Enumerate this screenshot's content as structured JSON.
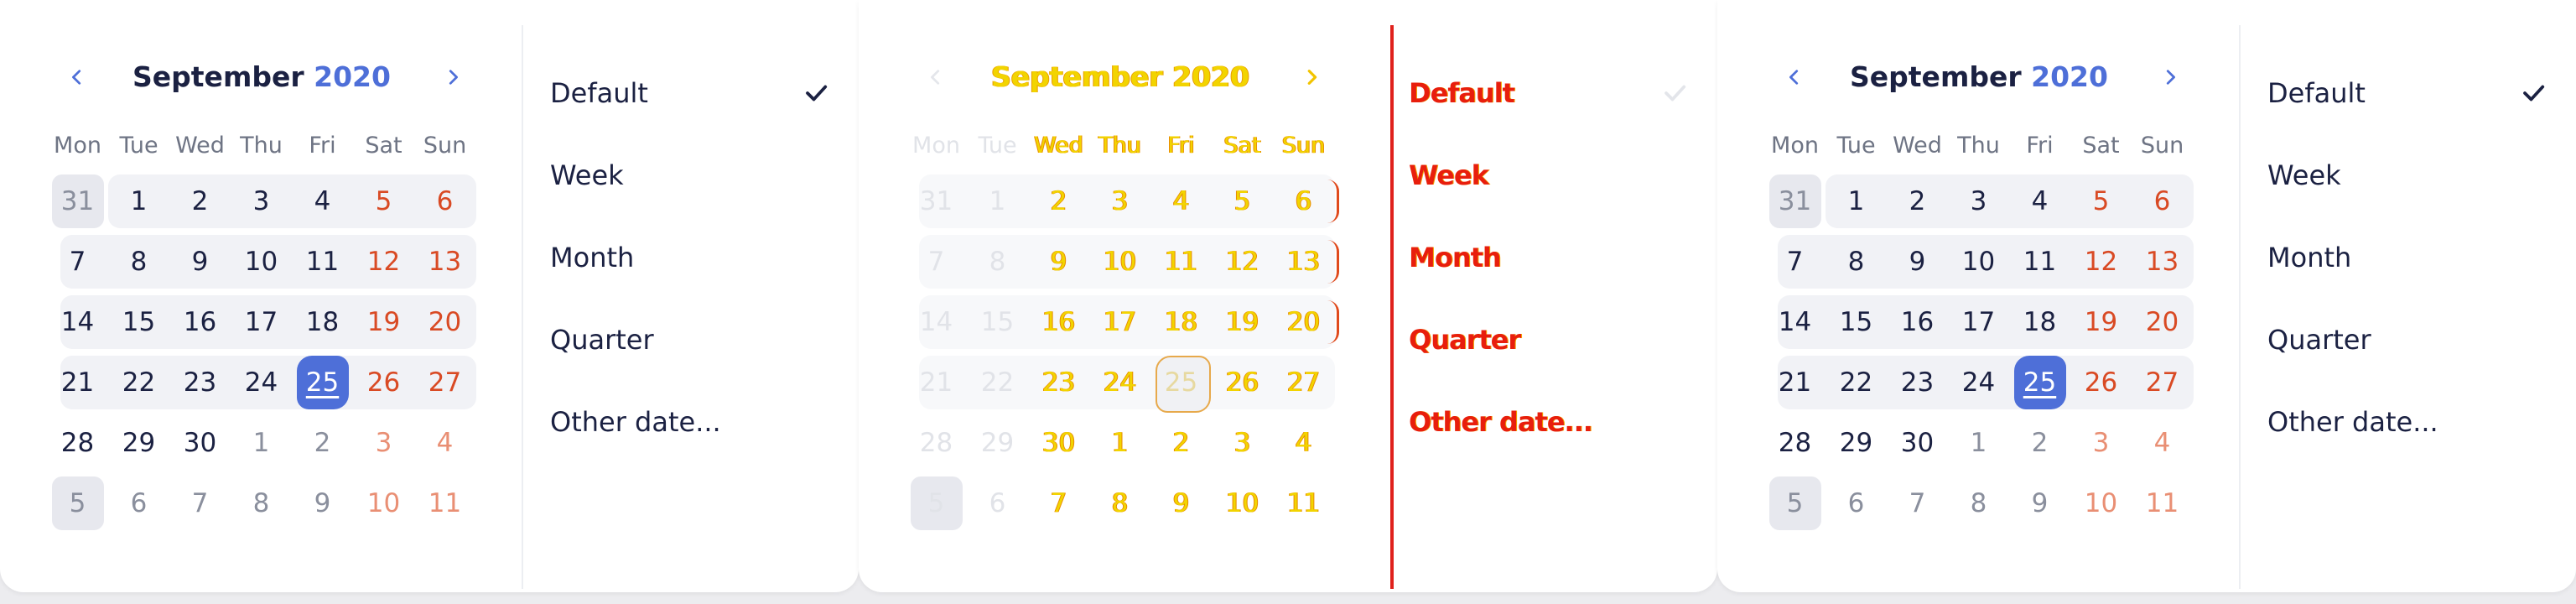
{
  "calendar": {
    "month": "September",
    "year": "2020",
    "weekdays": [
      "Mon",
      "Tue",
      "Wed",
      "Thu",
      "Fri",
      "Sat",
      "Sun"
    ],
    "weeks": [
      [
        "31",
        "1",
        "2",
        "3",
        "4",
        "5",
        "6"
      ],
      [
        "7",
        "8",
        "9",
        "10",
        "11",
        "12",
        "13"
      ],
      [
        "14",
        "15",
        "16",
        "17",
        "18",
        "19",
        "20"
      ],
      [
        "21",
        "22",
        "23",
        "24",
        "25",
        "26",
        "27"
      ],
      [
        "28",
        "29",
        "30",
        "1",
        "2",
        "3",
        "4"
      ],
      [
        "5",
        "6",
        "7",
        "8",
        "9",
        "10",
        "11"
      ]
    ],
    "selected_day": "25"
  },
  "menu": {
    "items": [
      "Default",
      "Week",
      "Month",
      "Quarter",
      "Other date..."
    ],
    "checked_item": "Default"
  },
  "icons": {
    "prev": "chevron-left-icon",
    "next": "chevron-right-icon",
    "check": "check-icon"
  },
  "colors": {
    "accent": "#4e6fd8",
    "weekend": "#d94a24",
    "text": "#1b2142",
    "glitch_yellow": "#f2d400",
    "glitch_red": "#e81e0d"
  }
}
